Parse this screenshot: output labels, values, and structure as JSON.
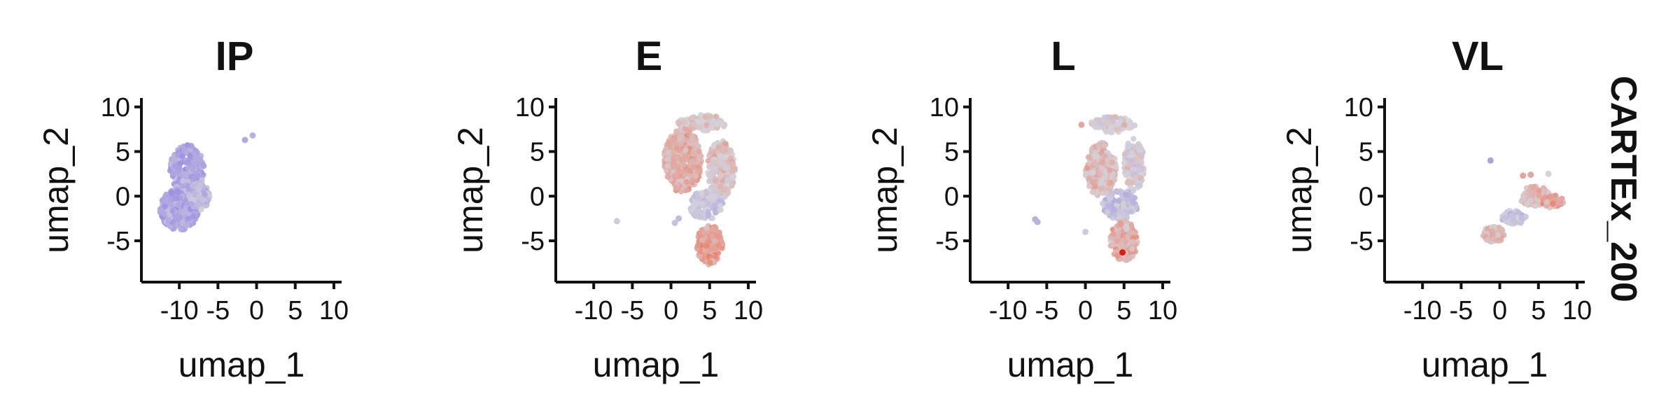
{
  "figure": {
    "row_label": "CARTEx_200",
    "colors": {
      "low": "#8f7fe6",
      "mid": "#d5d3da",
      "high": "#ee7a63",
      "max": "#e11a13",
      "axis": "#111111"
    }
  },
  "chart_data": [
    {
      "type": "scatter",
      "title": "IP",
      "xlabel": "umap_1",
      "ylabel": "umap_2",
      "xlim": [
        -14,
        11
      ],
      "ylim": [
        -9,
        11
      ],
      "xticks": [
        -10,
        -5,
        0,
        5,
        10
      ],
      "xtick_labels": [
        "-10",
        "-5",
        "0",
        "5",
        "10"
      ],
      "yticks": [
        -5,
        0,
        5,
        10
      ],
      "ytick_labels": [
        "-5",
        "0",
        "5",
        "10"
      ],
      "grid": false,
      "regions": [
        {
          "cx": -9.0,
          "cy": 3.0,
          "rx": 2.2,
          "ry": 2.8,
          "n": 260,
          "color_mean": 0.22
        },
        {
          "cx": -10.0,
          "cy": -1.5,
          "rx": 2.5,
          "ry": 2.3,
          "n": 300,
          "color_mean": 0.24
        },
        {
          "cx": -7.5,
          "cy": 0.0,
          "rx": 1.4,
          "ry": 1.6,
          "n": 100,
          "color_mean": 0.35
        }
      ],
      "points": [
        [
          -1.5,
          6.3,
          0.25
        ],
        [
          -0.5,
          6.8,
          0.3
        ]
      ]
    },
    {
      "type": "scatter",
      "title": "E",
      "xlabel": "umap_1",
      "ylabel": "umap_2",
      "xlim": [
        -14,
        11
      ],
      "ylim": [
        -9,
        11
      ],
      "xticks": [
        -10,
        -5,
        0,
        5,
        10
      ],
      "xtick_labels": [
        "-10",
        "-5",
        "0",
        "5",
        "10"
      ],
      "yticks": [
        -5,
        0,
        5,
        10
      ],
      "ytick_labels": [
        "-5",
        "0",
        "5",
        "10"
      ],
      "grid": false,
      "regions": [
        {
          "cx": 1.5,
          "cy": 4.0,
          "rx": 2.4,
          "ry": 3.6,
          "n": 330,
          "color_mean": 0.66
        },
        {
          "cx": 6.5,
          "cy": 3.0,
          "rx": 1.8,
          "ry": 3.2,
          "n": 220,
          "color_mean": 0.58
        },
        {
          "cx": 4.0,
          "cy": 8.2,
          "rx": 3.2,
          "ry": 0.9,
          "n": 110,
          "color_mean": 0.55
        },
        {
          "cx": 4.5,
          "cy": -1.0,
          "rx": 2.2,
          "ry": 1.6,
          "n": 140,
          "color_mean": 0.42
        },
        {
          "cx": 5.0,
          "cy": -5.5,
          "rx": 1.7,
          "ry": 2.2,
          "n": 220,
          "color_mean": 0.72
        }
      ],
      "points": [
        [
          -7.0,
          -2.8,
          0.45
        ],
        [
          0.5,
          -3.0,
          0.4
        ],
        [
          1.0,
          -2.5,
          0.35
        ]
      ]
    },
    {
      "type": "scatter",
      "title": "L",
      "xlabel": "umap_1",
      "ylabel": "umap_2",
      "xlim": [
        -14,
        11
      ],
      "ylim": [
        -9,
        11
      ],
      "xticks": [
        -10,
        -5,
        0,
        5,
        10
      ],
      "xtick_labels": [
        "-10",
        "-5",
        "0",
        "5",
        "10"
      ],
      "yticks": [
        -5,
        0,
        5,
        10
      ],
      "ytick_labels": [
        "-5",
        "0",
        "5",
        "10"
      ],
      "grid": false,
      "regions": [
        {
          "cx": 2.0,
          "cy": 3.0,
          "rx": 2.0,
          "ry": 3.0,
          "n": 250,
          "color_mean": 0.6
        },
        {
          "cx": 6.3,
          "cy": 3.5,
          "rx": 1.3,
          "ry": 3.0,
          "n": 140,
          "color_mean": 0.5
        },
        {
          "cx": 3.5,
          "cy": 8.0,
          "rx": 3.0,
          "ry": 0.9,
          "n": 70,
          "color_mean": 0.52
        },
        {
          "cx": 4.5,
          "cy": -1.0,
          "rx": 2.3,
          "ry": 1.6,
          "n": 150,
          "color_mean": 0.38
        },
        {
          "cx": 5.0,
          "cy": -5.0,
          "rx": 1.8,
          "ry": 2.2,
          "n": 200,
          "color_mean": 0.66
        }
      ],
      "points": [
        [
          -6.5,
          -2.6,
          0.3
        ],
        [
          -6.2,
          -2.9,
          0.3
        ],
        [
          0.0,
          -4.0,
          0.45
        ],
        [
          4.8,
          -6.3,
          1.0
        ],
        [
          -0.5,
          8.0,
          0.7
        ]
      ]
    },
    {
      "type": "scatter",
      "title": "VL",
      "xlabel": "umap_1",
      "ylabel": "umap_2",
      "xlim": [
        -14,
        11
      ],
      "ylim": [
        -9,
        11
      ],
      "xticks": [
        -10,
        -5,
        0,
        5,
        10
      ],
      "xtick_labels": [
        "-10",
        "-5",
        "0",
        "5",
        "10"
      ],
      "yticks": [
        -5,
        0,
        5,
        10
      ],
      "ytick_labels": [
        "-5",
        "0",
        "5",
        "10"
      ],
      "grid": false,
      "regions": [
        {
          "cx": -0.8,
          "cy": -4.3,
          "rx": 1.4,
          "ry": 0.9,
          "n": 120,
          "color_mean": 0.62
        },
        {
          "cx": 1.8,
          "cy": -2.4,
          "rx": 1.6,
          "ry": 0.8,
          "n": 80,
          "color_mean": 0.4
        },
        {
          "cx": 4.5,
          "cy": 0.0,
          "rx": 2.0,
          "ry": 1.1,
          "n": 80,
          "color_mean": 0.62
        },
        {
          "cx": 6.8,
          "cy": -0.6,
          "rx": 1.5,
          "ry": 0.7,
          "n": 40,
          "color_mean": 0.7
        }
      ],
      "points": [
        [
          -1.2,
          4.0,
          0.2
        ],
        [
          3.0,
          2.3,
          0.7
        ],
        [
          4.0,
          2.4,
          0.7
        ],
        [
          6.3,
          2.5,
          0.5
        ]
      ]
    }
  ]
}
